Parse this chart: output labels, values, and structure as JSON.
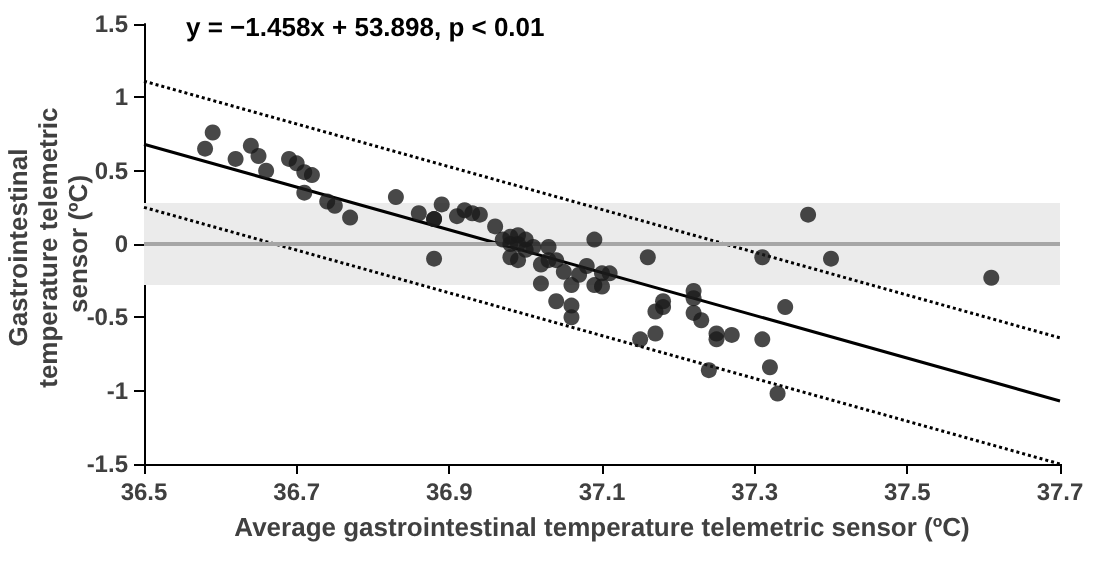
{
  "chart_data": {
    "type": "scatter",
    "title": "y = −1.458x + 53.898, p < 0.01",
    "xlabel": "Average gastrointestinal temperature telemetric sensor (ºC)",
    "ylabel": "Gastrointestinal temperature telemetric sensor (ºC)",
    "xlim": [
      36.5,
      37.7
    ],
    "xticks": [
      36.5,
      36.7,
      36.9,
      37.1,
      37.3,
      37.5,
      37.7
    ],
    "ylim": [
      -1.5,
      1.5
    ],
    "yticks": [
      -1.5,
      -1,
      -0.5,
      0,
      0.5,
      1,
      1.5
    ],
    "grid": false,
    "bands": [
      {
        "axis": "y",
        "from": -0.28,
        "to": 0.28,
        "color": "#ebebeb"
      }
    ],
    "ref_lines": [
      {
        "axis": "y",
        "value": 0,
        "color": "#a6a6a6"
      }
    ],
    "series": [
      {
        "marker": "circle",
        "color": "#1a1a1a",
        "x": [
          36.58,
          36.59,
          36.62,
          36.64,
          36.65,
          36.66,
          36.69,
          36.7,
          36.71,
          36.72,
          36.71,
          36.74,
          36.75,
          36.77,
          36.83,
          36.86,
          36.88,
          36.89,
          36.88,
          36.88,
          36.91,
          36.92,
          36.93,
          36.94,
          36.96,
          36.97,
          36.98,
          36.98,
          36.99,
          36.99,
          36.98,
          36.99,
          37.0,
          37.0,
          37.01,
          37.03,
          37.02,
          37.02,
          37.03,
          37.04,
          37.05,
          37.04,
          37.06,
          37.06,
          37.06,
          37.07,
          37.08,
          37.09,
          37.09,
          37.1,
          37.1,
          37.11,
          37.16,
          37.31,
          37.37,
          37.4,
          37.61,
          37.22,
          37.22,
          37.18,
          37.18,
          37.17,
          37.22,
          37.23,
          37.25,
          37.25,
          37.27,
          37.31,
          37.17,
          37.15,
          37.34,
          37.24,
          37.32,
          37.33
        ],
        "values": [
          0.65,
          0.76,
          0.58,
          0.67,
          0.6,
          0.5,
          0.58,
          0.55,
          0.49,
          0.47,
          0.35,
          0.29,
          0.26,
          0.18,
          0.32,
          0.21,
          0.17,
          0.27,
          0.17,
          -0.1,
          0.19,
          0.23,
          0.21,
          0.2,
          0.12,
          0.03,
          0.0,
          0.05,
          0.06,
          0.0,
          -0.09,
          -0.11,
          0.03,
          -0.04,
          -0.02,
          -0.02,
          -0.14,
          -0.27,
          -0.11,
          -0.11,
          -0.19,
          -0.39,
          -0.42,
          -0.5,
          -0.28,
          -0.21,
          -0.15,
          0.03,
          -0.28,
          -0.2,
          -0.29,
          -0.2,
          -0.09,
          -0.09,
          0.2,
          -0.1,
          -0.23,
          -0.32,
          -0.37,
          -0.39,
          -0.43,
          -0.46,
          -0.47,
          -0.52,
          -0.61,
          -0.65,
          -0.62,
          -0.65,
          -0.61,
          -0.65,
          -0.43,
          -0.86,
          -0.84,
          -1.02
        ]
      },
      {
        "type": "line",
        "marker": "none",
        "color": "#000000",
        "line_style": "solid",
        "x": [
          36.5,
          37.7
        ],
        "values": [
          0.68,
          -1.07
        ]
      },
      {
        "type": "line",
        "marker": "none",
        "color": "#000000",
        "line_style": "dotted",
        "x": [
          36.5,
          37.7
        ],
        "values": [
          1.11,
          -0.64
        ]
      },
      {
        "type": "line",
        "marker": "none",
        "color": "#000000",
        "line_style": "dotted",
        "x": [
          36.5,
          37.7
        ],
        "values": [
          0.25,
          -1.5
        ]
      }
    ]
  }
}
